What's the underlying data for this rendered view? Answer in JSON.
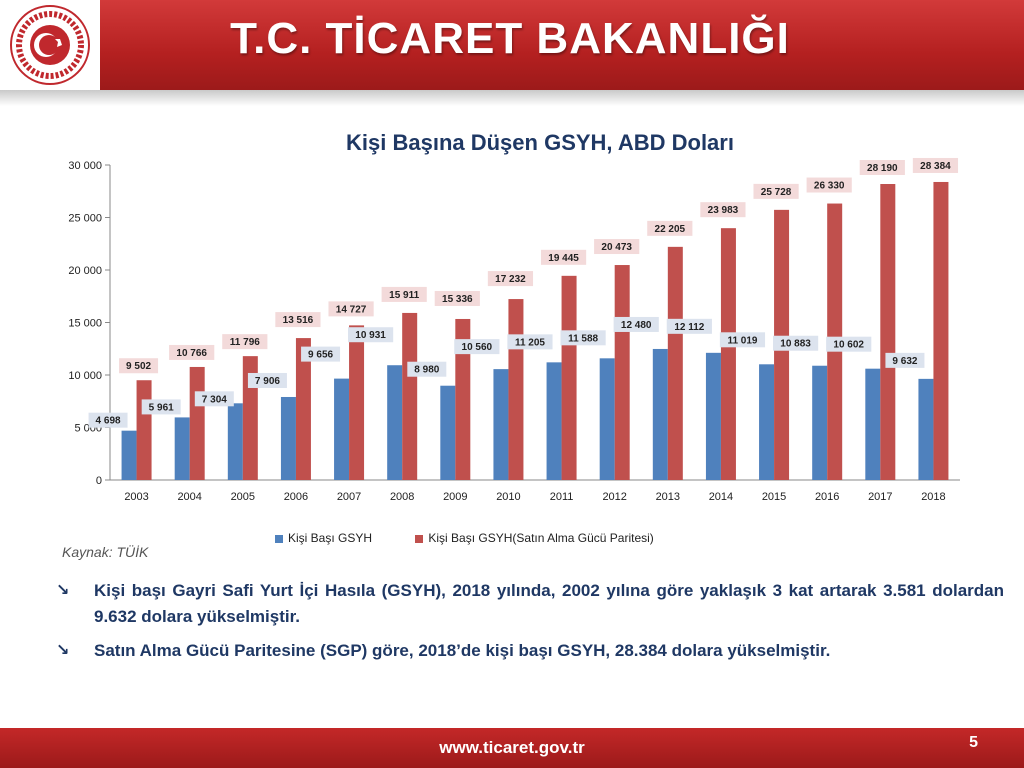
{
  "header": {
    "title": "T.C. TİCARET BAKANLIĞI"
  },
  "chart_data": {
    "type": "bar",
    "title": "Kişi Başına Düşen GSYH, ABD Doları",
    "categories": [
      "2003",
      "2004",
      "2005",
      "2006",
      "2007",
      "2008",
      "2009",
      "2010",
      "2011",
      "2012",
      "2013",
      "2014",
      "2015",
      "2016",
      "2017",
      "2018"
    ],
    "series": [
      {
        "name": "Kişi Başı GSYH",
        "color": "#4f81bd",
        "values": [
          4698,
          5961,
          7304,
          7906,
          9656,
          10931,
          8980,
          10560,
          11205,
          11588,
          12480,
          12112,
          11019,
          10883,
          10602,
          9632
        ],
        "labels": [
          "4 698",
          "5 961",
          "7 304",
          "7 906",
          "9 656",
          "10 931",
          "8 980",
          "10 560",
          "11 205",
          "11 588",
          "12 480",
          "12 112",
          "11 019",
          "10 883",
          "10 602",
          "9 632"
        ]
      },
      {
        "name": "Kişi Başı GSYH(Satın Alma Gücü Paritesi)",
        "color": "#c0504d",
        "values": [
          9502,
          10766,
          11796,
          13516,
          14727,
          15911,
          15336,
          17232,
          19445,
          20473,
          22205,
          23983,
          25728,
          26330,
          28190,
          28384
        ],
        "labels": [
          "9 502",
          "10 766",
          "11 796",
          "13 516",
          "14 727",
          "15 911",
          "15 336",
          "17 232",
          "19 445",
          "20 473",
          "22 205",
          "23 983",
          "25 728",
          "26 330",
          "28 190",
          "28 384"
        ]
      }
    ],
    "ylim": [
      0,
      30000
    ],
    "yticks": [
      0,
      5000,
      10000,
      15000,
      20000,
      25000,
      30000
    ],
    "ytick_labels": [
      "0",
      "5 000",
      "10 000",
      "15 000",
      "20 000",
      "25 000",
      "30 000"
    ],
    "legend_position": "bottom"
  },
  "source": "Kaynak: TÜİK",
  "bullets": [
    "Kişi başı Gayri Safi Yurt İçi Hasıla (GSYH), 2018 yılında, 2002 yılına göre yaklaşık 3 kat artarak 3.581 dolardan 9.632 dolara yükselmiştir.",
    "Satın Alma Gücü Paritesine (SGP) göre, 2018’de kişi başı GSYH, 28.384 dolara yükselmiştir."
  ],
  "bullet_icon": "arrow-down-right-icon",
  "footer": {
    "url": "www.ticaret.gov.tr",
    "page": "5"
  }
}
